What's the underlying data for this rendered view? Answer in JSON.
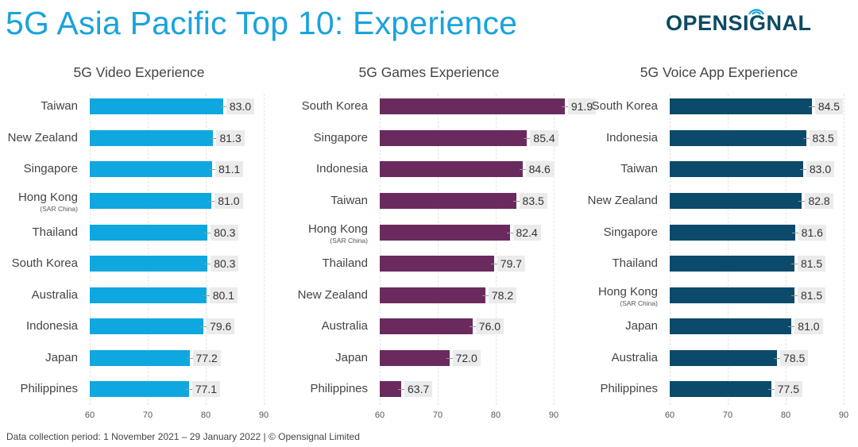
{
  "header": {
    "title": "5G Asia Pacific Top 10: Experience",
    "logo": "OPENSIGNAL"
  },
  "footer": {
    "text": "Data collection period: 1 November 2021 – 29 January 2022  |  © Opensignal Limited"
  },
  "colors": {
    "title": "#1aa3dc",
    "video": "#0fa7df",
    "games": "#6b2a5e",
    "voice": "#0b4a6b",
    "logo": "#0b4a63"
  },
  "chart_data": [
    {
      "type": "bar",
      "orientation": "horizontal",
      "title": "5G Video Experience",
      "categories": [
        "Taiwan",
        "New Zealand",
        "Singapore",
        "Hong Kong (SAR China)",
        "Thailand",
        "South Korea",
        "Australia",
        "Indonesia",
        "Japan",
        "Philippines"
      ],
      "values": [
        83.0,
        81.3,
        81.1,
        81.0,
        80.3,
        80.3,
        80.1,
        79.6,
        77.2,
        77.1
      ],
      "xlim": [
        60,
        90
      ],
      "xticks": [
        60,
        70,
        80,
        90
      ],
      "color": "#0fa7df",
      "grid": true
    },
    {
      "type": "bar",
      "orientation": "horizontal",
      "title": "5G Games Experience",
      "categories": [
        "South Korea",
        "Singapore",
        "Indonesia",
        "Taiwan",
        "Hong Kong (SAR China)",
        "Thailand",
        "New Zealand",
        "Australia",
        "Japan",
        "Philippines"
      ],
      "values": [
        91.9,
        85.4,
        84.6,
        83.5,
        82.4,
        79.7,
        78.2,
        76.0,
        72.0,
        63.7
      ],
      "xlim": [
        60,
        90
      ],
      "xticks": [
        60,
        70,
        80,
        90
      ],
      "color": "#6b2a5e",
      "grid": true
    },
    {
      "type": "bar",
      "orientation": "horizontal",
      "title": "5G Voice App Experience",
      "categories": [
        "South Korea",
        "Indonesia",
        "Taiwan",
        "New Zealand",
        "Singapore",
        "Thailand",
        "Hong Kong (SAR China)",
        "Japan",
        "Australia",
        "Philippines"
      ],
      "values": [
        84.5,
        83.5,
        83.0,
        82.8,
        81.6,
        81.5,
        81.5,
        81.0,
        78.5,
        77.5
      ],
      "xlim": [
        60,
        90
      ],
      "xticks": [
        60,
        70,
        80,
        90
      ],
      "color": "#0b4a6b",
      "grid": true
    }
  ],
  "panels": [
    {
      "title": "5G Video Experience",
      "rows": [
        {
          "label": "Taiwan",
          "sub": "",
          "value": "83.0"
        },
        {
          "label": "New Zealand",
          "sub": "",
          "value": "81.3"
        },
        {
          "label": "Singapore",
          "sub": "",
          "value": "81.1"
        },
        {
          "label": "Hong Kong",
          "sub": "(SAR China)",
          "value": "81.0"
        },
        {
          "label": "Thailand",
          "sub": "",
          "value": "80.3"
        },
        {
          "label": "South Korea",
          "sub": "",
          "value": "80.3"
        },
        {
          "label": "Australia",
          "sub": "",
          "value": "80.1"
        },
        {
          "label": "Indonesia",
          "sub": "",
          "value": "79.6"
        },
        {
          "label": "Japan",
          "sub": "",
          "value": "77.2"
        },
        {
          "label": "Philippines",
          "sub": "",
          "value": "77.1"
        }
      ],
      "ticks": [
        "60",
        "70",
        "80",
        "90"
      ]
    },
    {
      "title": "5G Games Experience",
      "rows": [
        {
          "label": "South Korea",
          "sub": "",
          "value": "91.9"
        },
        {
          "label": "Singapore",
          "sub": "",
          "value": "85.4"
        },
        {
          "label": "Indonesia",
          "sub": "",
          "value": "84.6"
        },
        {
          "label": "Taiwan",
          "sub": "",
          "value": "83.5"
        },
        {
          "label": "Hong Kong",
          "sub": "(SAR China)",
          "value": "82.4"
        },
        {
          "label": "Thailand",
          "sub": "",
          "value": "79.7"
        },
        {
          "label": "New Zealand",
          "sub": "",
          "value": "78.2"
        },
        {
          "label": "Australia",
          "sub": "",
          "value": "76.0"
        },
        {
          "label": "Japan",
          "sub": "",
          "value": "72.0"
        },
        {
          "label": "Philippines",
          "sub": "",
          "value": "63.7"
        }
      ],
      "ticks": [
        "60",
        "70",
        "80",
        "90"
      ]
    },
    {
      "title": "5G Voice App Experience",
      "rows": [
        {
          "label": "South Korea",
          "sub": "",
          "value": "84.5"
        },
        {
          "label": "Indonesia",
          "sub": "",
          "value": "83.5"
        },
        {
          "label": "Taiwan",
          "sub": "",
          "value": "83.0"
        },
        {
          "label": "New Zealand",
          "sub": "",
          "value": "82.8"
        },
        {
          "label": "Singapore",
          "sub": "",
          "value": "81.6"
        },
        {
          "label": "Thailand",
          "sub": "",
          "value": "81.5"
        },
        {
          "label": "Hong Kong",
          "sub": "(SAR China)",
          "value": "81.5"
        },
        {
          "label": "Japan",
          "sub": "",
          "value": "81.0"
        },
        {
          "label": "Australia",
          "sub": "",
          "value": "78.5"
        },
        {
          "label": "Philippines",
          "sub": "",
          "value": "77.5"
        }
      ],
      "ticks": [
        "60",
        "70",
        "80",
        "90"
      ]
    }
  ]
}
